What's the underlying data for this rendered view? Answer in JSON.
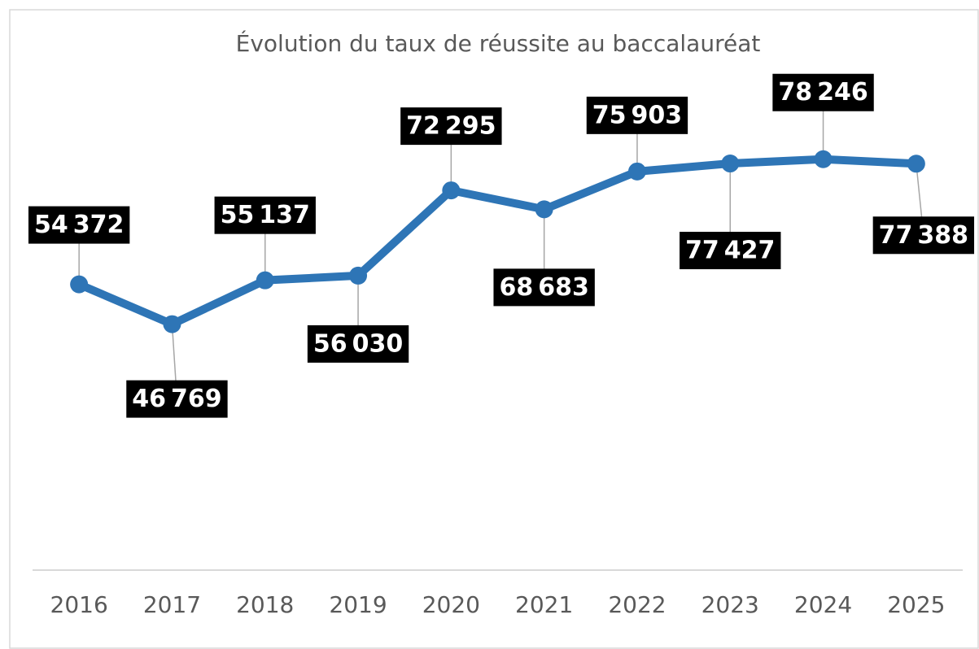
{
  "chart_data": {
    "type": "line",
    "title": "Évolution du taux de réussite au baccalauréat",
    "categories": [
      "2016",
      "2017",
      "2018",
      "2019",
      "2020",
      "2021",
      "2022",
      "2023",
      "2024",
      "2025"
    ],
    "values": [
      54372,
      46769,
      55137,
      56030,
      72295,
      68683,
      75903,
      77427,
      78246,
      77388
    ],
    "value_labels": [
      "54 372",
      "46 769",
      "55 137",
      "56 030",
      "72 295",
      "68 683",
      "75 903",
      "77 427",
      "78 246",
      "77 388"
    ],
    "color": "#2e75b6",
    "ylim": [
      0,
      90000
    ]
  }
}
